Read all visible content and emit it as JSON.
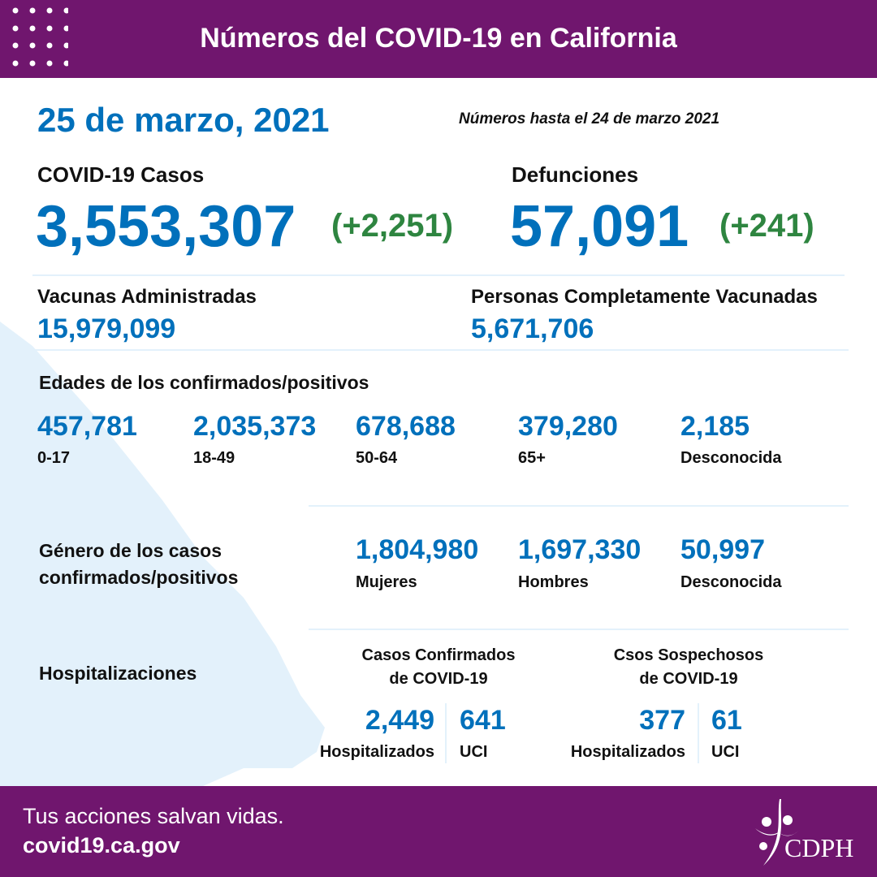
{
  "header": {
    "title": "Números del COVID-19 en California"
  },
  "date": "25 de marzo, 2021",
  "as_of": "Números hasta el 24 de marzo 2021",
  "cases": {
    "label": "COVID-19 Casos",
    "value": "3,553,307",
    "change": "(+2,251)"
  },
  "deaths": {
    "label": "Defunciones",
    "value": "57,091",
    "change": "(+241)"
  },
  "vaccines": {
    "label": "Vacunas Administradas",
    "value": "15,979,099"
  },
  "fully_vaccinated": {
    "label": "Personas Completamente Vacunadas",
    "value": "5,671,706"
  },
  "ages": {
    "label": "Edades de los confirmados/positivos",
    "items": [
      {
        "value": "457,781",
        "label": "0-17"
      },
      {
        "value": "2,035,373",
        "label": "18-49"
      },
      {
        "value": "678,688",
        "label": "50-64"
      },
      {
        "value": "379,280",
        "label": "65+"
      },
      {
        "value": "2,185",
        "label": "Desconocida"
      }
    ]
  },
  "gender": {
    "label_line1": "Género de los casos",
    "label_line2": "confirmados/positivos",
    "items": [
      {
        "value": "1,804,980",
        "label": "Mujeres"
      },
      {
        "value": "1,697,330",
        "label": "Hombres"
      },
      {
        "value": "50,997",
        "label": "Desconocida"
      }
    ]
  },
  "hosp": {
    "label": "Hospitalizaciones",
    "confirmed": {
      "title1": "Casos Confirmados",
      "title2": "de COVID-19",
      "hosp_value": "2,449",
      "hosp_label": "Hospitalizados",
      "icu_value": "641",
      "icu_label": "UCI"
    },
    "suspected": {
      "title1": "Csos Sospechosos",
      "title2": "de COVID-19",
      "hosp_value": "377",
      "hosp_label": "Hospitalizados",
      "icu_value": "61",
      "icu_label": "UCI"
    }
  },
  "footer": {
    "slogan": "Tus acciones salvan vidas.",
    "url": "covid19.ca.gov",
    "logo_text": "CDPH"
  },
  "colors": {
    "purple": "#70166e",
    "blue": "#0070bb",
    "green": "#2e8540",
    "map": "#e3f1fb"
  }
}
